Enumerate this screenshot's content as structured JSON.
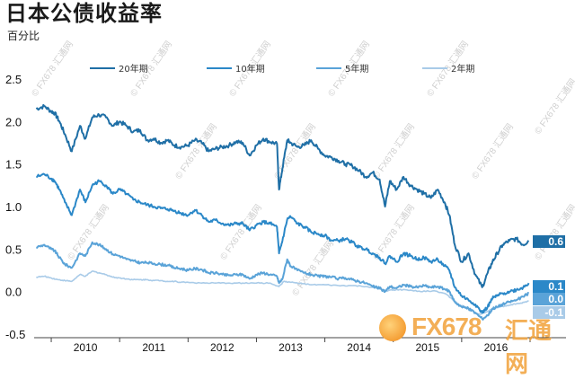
{
  "title": "日本公债收益率",
  "unit": "百分比",
  "watermark": "© FX678 汇通网",
  "logo": {
    "fx": "FX678",
    "cn": "汇通网"
  },
  "chart_data": {
    "type": "line",
    "title": "日本公债收益率",
    "ylabel": "百分比",
    "xlabel": "",
    "ylim": [
      -0.5,
      2.5
    ],
    "xlim": [
      2009.75,
      2017.0
    ],
    "y_ticks": [
      "2.5",
      "2.0",
      "1.5",
      "1.0",
      "0.5",
      "0.0",
      "-0.5"
    ],
    "y_tick_values": [
      2.5,
      2.0,
      1.5,
      1.0,
      0.5,
      0.0,
      -0.5
    ],
    "x_ticks": [
      "2010",
      "2011",
      "2012",
      "2013",
      "2014",
      "2015",
      "2016"
    ],
    "grid": false,
    "legend_position": "top",
    "series": [
      {
        "name": "20年期",
        "color": "#1f6fa6",
        "end_label": "0.6",
        "x": [
          2009.78,
          2009.9,
          2010.0,
          2010.05,
          2010.12,
          2010.2,
          2010.3,
          2010.42,
          2010.5,
          2010.6,
          2010.7,
          2010.8,
          2010.9,
          2011.0,
          2011.1,
          2011.2,
          2011.3,
          2011.4,
          2011.5,
          2011.6,
          2011.7,
          2011.8,
          2011.9,
          2012.0,
          2012.1,
          2012.2,
          2012.3,
          2012.4,
          2012.5,
          2012.6,
          2012.7,
          2012.8,
          2012.9,
          2013.0,
          2013.1,
          2013.2,
          2013.3,
          2013.33,
          2013.38,
          2013.45,
          2013.5,
          2013.6,
          2013.7,
          2013.8,
          2013.9,
          2014.0,
          2014.1,
          2014.2,
          2014.3,
          2014.4,
          2014.5,
          2014.6,
          2014.7,
          2014.8,
          2014.88,
          2014.95,
          2015.05,
          2015.15,
          2015.25,
          2015.35,
          2015.45,
          2015.55,
          2015.65,
          2015.75,
          2015.82,
          2015.9,
          2016.0,
          2016.1,
          2016.2,
          2016.3,
          2016.38,
          2016.45,
          2016.52,
          2016.6,
          2016.7,
          2016.8,
          2016.9,
          2016.98
        ],
        "y": [
          2.15,
          2.18,
          2.12,
          2.1,
          2.0,
          1.85,
          1.65,
          1.95,
          1.8,
          2.05,
          2.08,
          2.05,
          1.95,
          2.0,
          1.95,
          1.88,
          1.9,
          1.78,
          1.8,
          1.75,
          1.78,
          1.72,
          1.7,
          1.72,
          1.78,
          1.75,
          1.65,
          1.68,
          1.7,
          1.72,
          1.76,
          1.75,
          1.6,
          1.72,
          1.8,
          1.76,
          1.74,
          1.2,
          1.45,
          1.78,
          1.75,
          1.7,
          1.72,
          1.78,
          1.68,
          1.6,
          1.58,
          1.54,
          1.5,
          1.48,
          1.42,
          1.35,
          1.4,
          1.32,
          1.0,
          1.3,
          1.2,
          1.35,
          1.25,
          1.2,
          1.15,
          1.1,
          1.2,
          1.05,
          0.9,
          0.55,
          0.35,
          0.45,
          0.2,
          0.05,
          0.22,
          0.35,
          0.45,
          0.55,
          0.6,
          0.62,
          0.55,
          0.6
        ]
      },
      {
        "name": "10年期",
        "color": "#2b88c8",
        "end_label": "0.1",
        "x": [
          2009.78,
          2009.9,
          2010.0,
          2010.05,
          2010.12,
          2010.2,
          2010.3,
          2010.42,
          2010.5,
          2010.6,
          2010.7,
          2010.8,
          2010.9,
          2011.0,
          2011.1,
          2011.2,
          2011.3,
          2011.4,
          2011.5,
          2011.6,
          2011.7,
          2011.8,
          2011.9,
          2012.0,
          2012.1,
          2012.2,
          2012.3,
          2012.4,
          2012.5,
          2012.6,
          2012.7,
          2012.8,
          2012.9,
          2013.0,
          2013.1,
          2013.2,
          2013.3,
          2013.33,
          2013.38,
          2013.45,
          2013.5,
          2013.6,
          2013.7,
          2013.8,
          2013.9,
          2014.0,
          2014.1,
          2014.2,
          2014.3,
          2014.4,
          2014.5,
          2014.6,
          2014.7,
          2014.8,
          2014.88,
          2014.95,
          2015.05,
          2015.15,
          2015.25,
          2015.35,
          2015.45,
          2015.55,
          2015.65,
          2015.75,
          2015.82,
          2015.9,
          2016.0,
          2016.1,
          2016.2,
          2016.3,
          2016.38,
          2016.45,
          2016.52,
          2016.6,
          2016.7,
          2016.8,
          2016.9,
          2016.98
        ],
        "y": [
          1.35,
          1.38,
          1.33,
          1.3,
          1.2,
          1.05,
          0.9,
          1.2,
          1.05,
          1.25,
          1.3,
          1.25,
          1.15,
          1.2,
          1.15,
          1.08,
          1.05,
          1.02,
          1.0,
          0.98,
          0.97,
          0.95,
          0.92,
          0.9,
          0.96,
          0.9,
          0.82,
          0.84,
          0.8,
          0.78,
          0.8,
          0.8,
          0.72,
          0.78,
          0.82,
          0.8,
          0.76,
          0.45,
          0.6,
          0.85,
          0.88,
          0.8,
          0.76,
          0.7,
          0.68,
          0.66,
          0.6,
          0.6,
          0.62,
          0.58,
          0.52,
          0.5,
          0.45,
          0.4,
          0.33,
          0.42,
          0.35,
          0.45,
          0.42,
          0.38,
          0.4,
          0.35,
          0.38,
          0.3,
          0.25,
          0.05,
          -0.05,
          -0.1,
          -0.15,
          -0.25,
          -0.18,
          -0.08,
          -0.05,
          -0.02,
          0.0,
          0.02,
          0.05,
          0.1
        ]
      },
      {
        "name": "5年期",
        "color": "#5aa3d8",
        "end_label": "0.0",
        "x": [
          2009.78,
          2009.9,
          2010.0,
          2010.05,
          2010.12,
          2010.2,
          2010.3,
          2010.42,
          2010.5,
          2010.6,
          2010.7,
          2010.8,
          2010.9,
          2011.0,
          2011.1,
          2011.2,
          2011.3,
          2011.4,
          2011.5,
          2011.6,
          2011.7,
          2011.8,
          2011.9,
          2012.0,
          2012.1,
          2012.2,
          2012.3,
          2012.4,
          2012.5,
          2012.6,
          2012.7,
          2012.8,
          2012.9,
          2013.0,
          2013.1,
          2013.2,
          2013.3,
          2013.33,
          2013.38,
          2013.45,
          2013.5,
          2013.6,
          2013.7,
          2013.8,
          2013.9,
          2014.0,
          2014.1,
          2014.2,
          2014.3,
          2014.4,
          2014.5,
          2014.6,
          2014.7,
          2014.8,
          2014.88,
          2014.95,
          2015.05,
          2015.15,
          2015.25,
          2015.35,
          2015.45,
          2015.55,
          2015.65,
          2015.75,
          2015.82,
          2015.9,
          2016.0,
          2016.1,
          2016.2,
          2016.3,
          2016.38,
          2016.45,
          2016.52,
          2016.6,
          2016.7,
          2016.8,
          2016.9,
          2016.98
        ],
        "y": [
          0.52,
          0.55,
          0.5,
          0.48,
          0.4,
          0.32,
          0.28,
          0.45,
          0.42,
          0.58,
          0.55,
          0.5,
          0.44,
          0.42,
          0.38,
          0.36,
          0.34,
          0.34,
          0.33,
          0.32,
          0.31,
          0.28,
          0.27,
          0.25,
          0.27,
          0.26,
          0.22,
          0.22,
          0.2,
          0.19,
          0.2,
          0.2,
          0.15,
          0.2,
          0.22,
          0.2,
          0.18,
          0.1,
          0.15,
          0.38,
          0.3,
          0.25,
          0.22,
          0.2,
          0.18,
          0.18,
          0.17,
          0.15,
          0.16,
          0.14,
          0.12,
          0.1,
          0.06,
          0.04,
          0.0,
          0.06,
          0.04,
          0.08,
          0.06,
          0.05,
          0.07,
          0.05,
          0.06,
          0.03,
          0.0,
          -0.12,
          -0.18,
          -0.2,
          -0.25,
          -0.32,
          -0.28,
          -0.2,
          -0.18,
          -0.15,
          -0.12,
          -0.1,
          -0.06,
          -0.02
        ]
      },
      {
        "name": "2年期",
        "color": "#a9cbe8",
        "end_label": "-0.1",
        "x": [
          2009.78,
          2009.9,
          2010.0,
          2010.1,
          2010.2,
          2010.3,
          2010.42,
          2010.5,
          2010.6,
          2010.7,
          2010.8,
          2010.9,
          2011.0,
          2011.1,
          2011.2,
          2011.3,
          2011.4,
          2011.5,
          2011.6,
          2011.7,
          2011.8,
          2011.9,
          2012.0,
          2012.2,
          2012.4,
          2012.6,
          2012.8,
          2013.0,
          2013.2,
          2013.33,
          2013.4,
          2013.5,
          2013.6,
          2013.8,
          2014.0,
          2014.2,
          2014.4,
          2014.6,
          2014.8,
          2014.9,
          2015.0,
          2015.2,
          2015.4,
          2015.6,
          2015.75,
          2015.85,
          2015.95,
          2016.05,
          2016.15,
          2016.25,
          2016.35,
          2016.45,
          2016.55,
          2016.65,
          2016.75,
          2016.85,
          2016.98
        ],
        "y": [
          0.17,
          0.18,
          0.16,
          0.14,
          0.13,
          0.12,
          0.2,
          0.18,
          0.24,
          0.22,
          0.2,
          0.17,
          0.16,
          0.15,
          0.14,
          0.14,
          0.14,
          0.13,
          0.13,
          0.12,
          0.12,
          0.11,
          0.11,
          0.1,
          0.1,
          0.1,
          0.1,
          0.1,
          0.1,
          0.06,
          0.12,
          0.11,
          0.1,
          0.08,
          0.08,
          0.07,
          0.07,
          0.06,
          0.03,
          0.01,
          0.02,
          0.02,
          0.0,
          0.01,
          -0.02,
          -0.08,
          -0.15,
          -0.18,
          -0.22,
          -0.27,
          -0.24,
          -0.2,
          -0.18,
          -0.17,
          -0.15,
          -0.14,
          -0.11
        ]
      }
    ]
  }
}
